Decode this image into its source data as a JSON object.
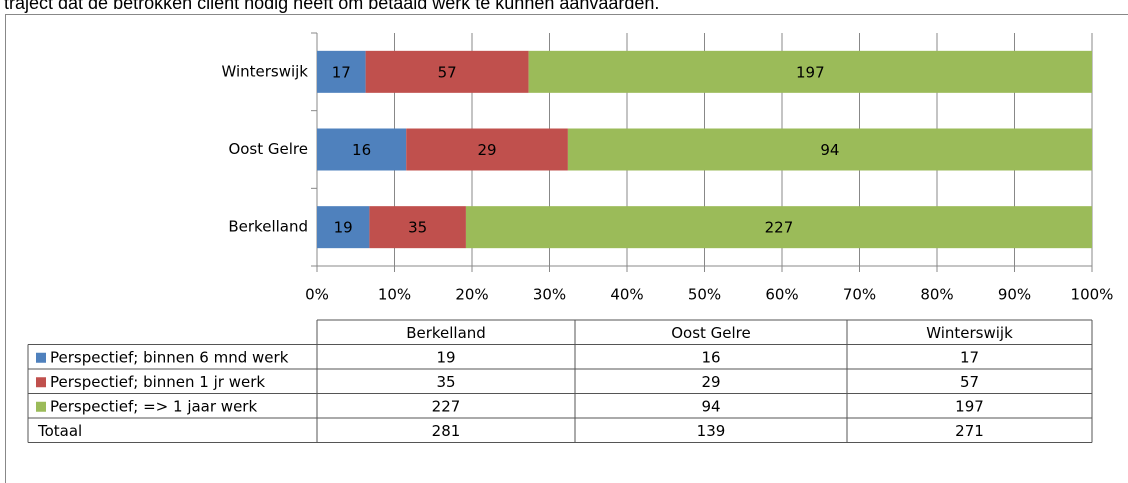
{
  "caption": "traject dat de betrokken cliënt nodig heeft om betaald werk te kunnen aanvaarden.",
  "chart_data": {
    "type": "stacked_bar_100",
    "categories": [
      "Berkelland",
      "Oost Gelre",
      "Winterswijk"
    ],
    "series": [
      {
        "name": "Perspectief; binnen 6 mnd werk",
        "color": "#4f81bd",
        "values": [
          19,
          16,
          17
        ]
      },
      {
        "name": "Perspectief; binnen 1 jr werk",
        "color": "#c0504d",
        "values": [
          35,
          29,
          57
        ]
      },
      {
        "name": "Perspectief; => 1 jaar werk",
        "color": "#9bbb59",
        "values": [
          227,
          94,
          197
        ]
      }
    ],
    "total_label": "Totaal",
    "totals": [
      281,
      139,
      271
    ],
    "xlim": [
      0,
      100
    ],
    "xticks": [
      {
        "value": 0,
        "label": "0%"
      },
      {
        "value": 10,
        "label": "10%"
      },
      {
        "value": 20,
        "label": "20%"
      },
      {
        "value": 30,
        "label": "30%"
      },
      {
        "value": 40,
        "label": "40%"
      },
      {
        "value": 50,
        "label": "50%"
      },
      {
        "value": 60,
        "label": "60%"
      },
      {
        "value": 70,
        "label": "70%"
      },
      {
        "value": 80,
        "label": "80%"
      },
      {
        "value": 90,
        "label": "90%"
      },
      {
        "value": 100,
        "label": "100%"
      }
    ],
    "grid": true
  }
}
